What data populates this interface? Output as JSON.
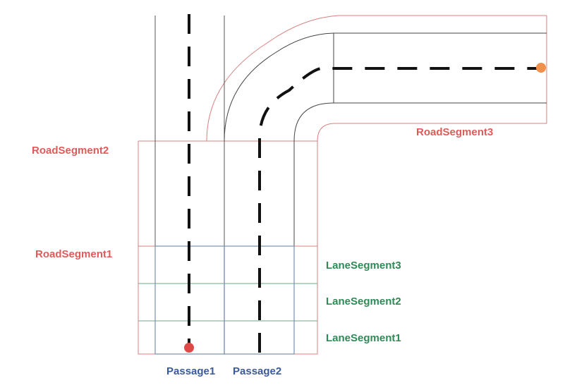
{
  "labels": {
    "road_segment_2": "RoadSegment2",
    "road_segment_1": "RoadSegment1",
    "road_segment_3": "RoadSegment3",
    "lane_segment_3": "LaneSegment3",
    "lane_segment_2": "LaneSegment2",
    "lane_segment_1": "LaneSegment1",
    "passage_1": "Passage1",
    "passage_2": "Passage2"
  },
  "colors": {
    "road_segment_label": "#e05a5a",
    "lane_segment_label": "#2e8b57",
    "passage_label": "#3b5a9a",
    "road_boundary": "#d98080",
    "lane_boundary": "#3a3a3a",
    "lane_segment_line": "#6aa88a",
    "passage_box": "#7a8fb0",
    "start_dot": "#e04848",
    "end_dot": "#f0904a",
    "center_dash": "#111111"
  }
}
